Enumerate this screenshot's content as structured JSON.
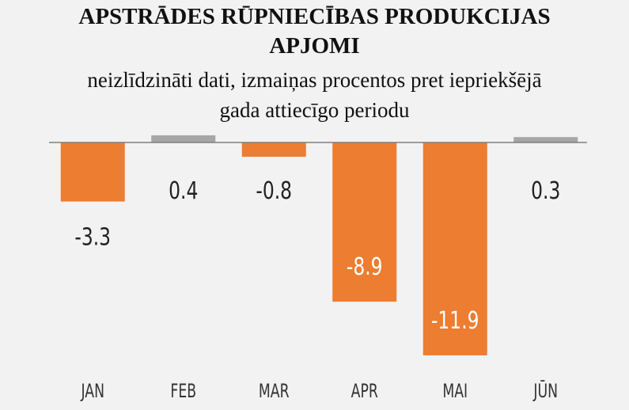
{
  "chart_data": {
    "type": "bar",
    "title_lines": [
      "APSTRĀDES RŪPNIECĪBAS PRODUKCIJAS",
      "APJOMI"
    ],
    "subtitle_lines": [
      "neizlīdzināti dati, izmaiņas procentos pret iepriekšējā",
      "gada attiecīgo periodu"
    ],
    "categories": [
      "JAN",
      "FEB",
      "MAR",
      "APR",
      "MAI",
      "JŪN"
    ],
    "values": [
      -3.3,
      0.4,
      -0.8,
      -8.9,
      -11.9,
      0.3
    ],
    "value_labels": [
      "-3.3",
      "0.4",
      "-0.8",
      "-8.9",
      "-11.9",
      "0.3"
    ],
    "colors": {
      "negative": "#ed7d31",
      "positive": "#a6a6a6",
      "axis": "#7f7f7f",
      "label_dark": "#222222",
      "label_light": "#ffffff"
    },
    "xlabel": "",
    "ylabel": "",
    "ylim": [
      -11.9,
      0.5
    ],
    "grid": false,
    "legend": "none"
  }
}
